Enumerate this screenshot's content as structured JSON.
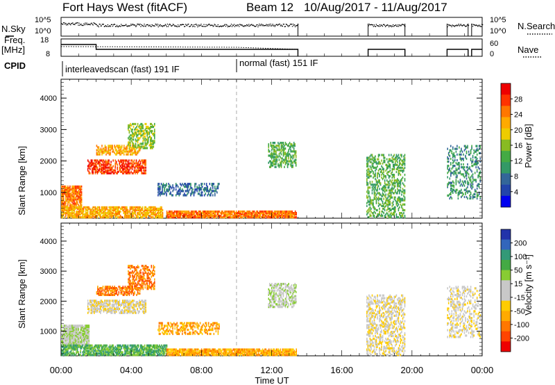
{
  "header": {
    "radar": "Fort Hays West (fitACF)",
    "beam": "Beam 12",
    "dates": "10/Aug/2017 - 11/Aug/2017"
  },
  "summary": {
    "nsky_label": "N.Sky",
    "nsky_ticks": [
      "10^5",
      "10^0"
    ],
    "nsearch_label": "N.Search",
    "nsearch_ticks": [
      "10^5",
      "10^0"
    ],
    "freq_label": "Freq.",
    "freq_unit": "[MHz]",
    "freq_ticks": [
      "18",
      "8"
    ],
    "nave_label": "Nave",
    "nave_ticks": [
      "60",
      "0"
    ],
    "cpid_label": "CPID",
    "modes": [
      {
        "name": "interleavedscan (fast) 191 IF",
        "start": 0,
        "end": 10
      },
      {
        "name": "normal (fast) 151 IF",
        "start": 10,
        "end": 24
      }
    ]
  },
  "colorbars": {
    "power": {
      "label": "Power [dB]",
      "ticks": [
        "28",
        "24",
        "20",
        "16",
        "12",
        "8",
        "4"
      ],
      "colors": [
        "#ee0000",
        "#ff3300",
        "#ff7700",
        "#ffaa00",
        "#eecc00",
        "#88bb22",
        "#44aa44",
        "#339966",
        "#336699",
        "#2244aa",
        "#0000ee"
      ]
    },
    "velocity": {
      "label": "Velocity [m s⁻¹]",
      "ticks": [
        "200",
        "100",
        "50",
        "15",
        "-15",
        "-50",
        "-100",
        "-200"
      ],
      "colors": [
        "#2233aa",
        "#3366bb",
        "#339977",
        "#44aa44",
        "#88cc33",
        "#c8c8c8",
        "#c8c8c8",
        "#ffcc00",
        "#ffaa00",
        "#ff7700",
        "#ff4400",
        "#ee0000"
      ]
    }
  },
  "axes": {
    "ylabel": "Slant Range [km]",
    "xlabel": "Time UT",
    "yticks": [
      "4000",
      "3000",
      "2000",
      "1000"
    ],
    "xticks": [
      "00:00",
      "04:00",
      "08:00",
      "12:00",
      "16:00",
      "20:00",
      "00:00"
    ]
  },
  "chart_data": [
    {
      "type": "heatmap",
      "name": "power",
      "xlabel": "Time UT",
      "ylabel": "Slant Range [km]",
      "xlim": [
        0,
        24
      ],
      "ylim": [
        180,
        4600
      ],
      "colorbar": "Power [dB]",
      "patches": [
        {
          "t0": 0.0,
          "t1": 1.2,
          "r0": 500,
          "r1": 1200,
          "level": 2,
          "density": 0.8
        },
        {
          "t0": 0.0,
          "t1": 5.8,
          "r0": 200,
          "r1": 550,
          "level": 3,
          "density": 0.75
        },
        {
          "t0": 1.5,
          "t1": 4.8,
          "r0": 1600,
          "r1": 2050,
          "level": 1,
          "density": 0.6
        },
        {
          "t0": 2.0,
          "t1": 4.5,
          "r0": 2200,
          "r1": 2500,
          "level": 3,
          "density": 0.55
        },
        {
          "t0": 3.8,
          "t1": 5.3,
          "r0": 2400,
          "r1": 3200,
          "level": 5,
          "density": 0.5
        },
        {
          "t0": 5.5,
          "t1": 9.0,
          "r0": 900,
          "r1": 1300,
          "level": 8,
          "density": 0.45
        },
        {
          "t0": 6.0,
          "t1": 13.4,
          "r0": 200,
          "r1": 420,
          "level": 2,
          "density": 0.85
        },
        {
          "t0": 11.8,
          "t1": 13.4,
          "r0": 1800,
          "r1": 2600,
          "level": 6,
          "density": 0.5
        },
        {
          "t0": 17.4,
          "t1": 19.6,
          "r0": 200,
          "r1": 2200,
          "level": 6,
          "density": 0.4
        },
        {
          "t0": 22.0,
          "t1": 23.9,
          "r0": 800,
          "r1": 2500,
          "level": 7,
          "density": 0.3
        }
      ]
    },
    {
      "type": "heatmap",
      "name": "velocity",
      "xlabel": "Time UT",
      "ylabel": "Slant Range [km]",
      "xlim": [
        0,
        24
      ],
      "ylim": [
        180,
        4600
      ],
      "colorbar": "Velocity [m s⁻¹]",
      "patches": [
        {
          "t0": 0.0,
          "t1": 1.6,
          "r0": 500,
          "r1": 1200,
          "level": 5,
          "density": 0.8
        },
        {
          "t0": 0.0,
          "t1": 6.0,
          "r0": 200,
          "r1": 550,
          "level": 3,
          "density": 0.7
        },
        {
          "t0": 1.5,
          "t1": 4.8,
          "r0": 1600,
          "r1": 2050,
          "level": 6,
          "density": 0.6
        },
        {
          "t0": 2.0,
          "t1": 4.5,
          "r0": 2200,
          "r1": 2500,
          "level": 9,
          "density": 0.55
        },
        {
          "t0": 3.8,
          "t1": 5.3,
          "r0": 2400,
          "r1": 3200,
          "level": 9,
          "density": 0.5
        },
        {
          "t0": 5.5,
          "t1": 9.0,
          "r0": 900,
          "r1": 1300,
          "level": 8,
          "density": 0.45
        },
        {
          "t0": 6.0,
          "t1": 13.4,
          "r0": 200,
          "r1": 420,
          "level": 8,
          "density": 0.85
        },
        {
          "t0": 11.8,
          "t1": 13.4,
          "r0": 1800,
          "r1": 2600,
          "level": 5,
          "density": 0.5
        },
        {
          "t0": 17.4,
          "t1": 19.6,
          "r0": 200,
          "r1": 2200,
          "level": 6,
          "density": 0.4
        },
        {
          "t0": 22.0,
          "t1": 23.9,
          "r0": 800,
          "r1": 2500,
          "level": 6,
          "density": 0.3
        }
      ]
    }
  ]
}
